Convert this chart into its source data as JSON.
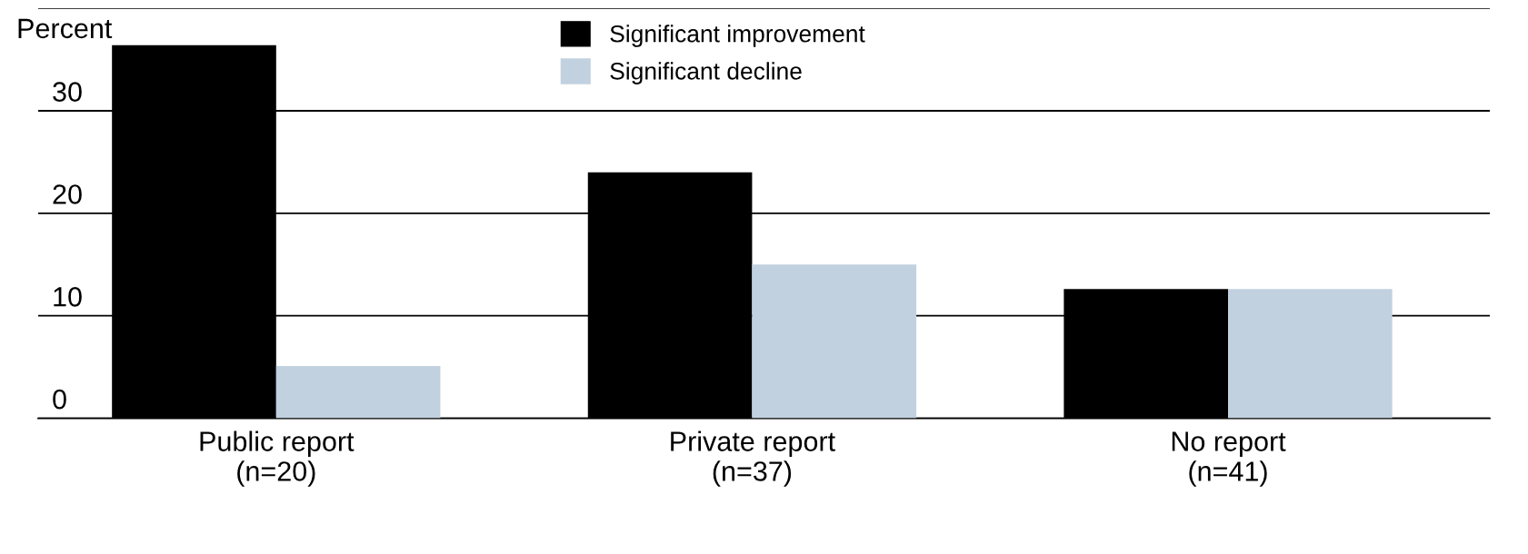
{
  "chart_data": {
    "type": "bar",
    "ylabel": "Percent",
    "categories": [
      "Public report\n(n=20)",
      "Private report\n(n=37)",
      "No report\n(n=41)"
    ],
    "series": [
      {
        "name": "Significant improvement",
        "color": "#000000",
        "values": [
          36.4,
          24,
          12.6
        ]
      },
      {
        "name": "Significant decline",
        "color": "#c2d1e0",
        "values": [
          5.1,
          15,
          12.6
        ]
      }
    ],
    "ylim": [
      0,
      40
    ],
    "yticks": [
      0,
      10,
      20,
      30,
      {
        "value": 40,
        "label": null
      }
    ],
    "grid": "y",
    "legend": "top"
  }
}
